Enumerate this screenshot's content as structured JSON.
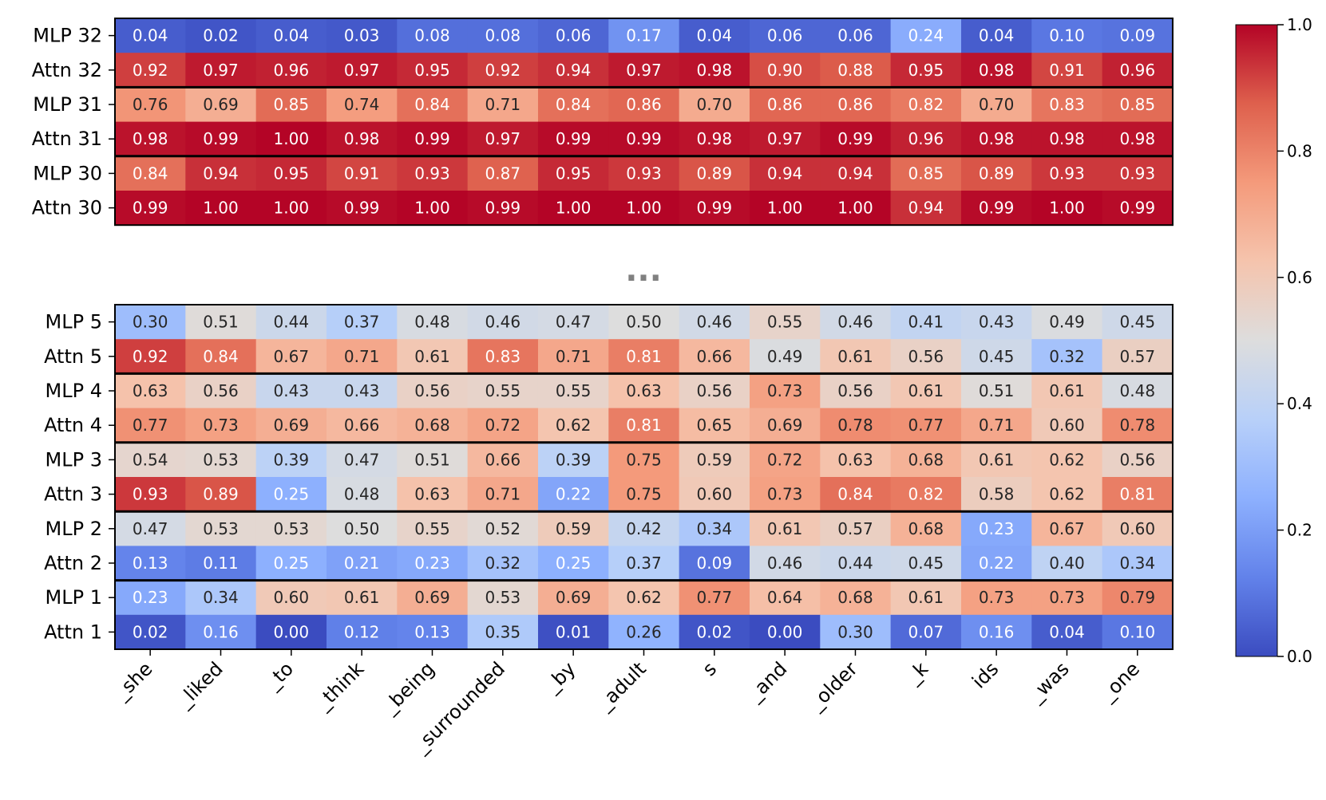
{
  "chart_data": {
    "type": "heatmap",
    "title": "",
    "tokens": [
      "_she",
      "_liked",
      "_to",
      "_think",
      "_being",
      "_surrounded",
      "_by",
      "_adult",
      "s",
      "_and",
      "_older",
      "_k",
      "ids",
      "_was",
      "_one"
    ],
    "ellipsis": "...",
    "colorbar": {
      "colormap": "coolwarm",
      "range": [
        0.0,
        1.0
      ],
      "ticks": [
        "0.0",
        "0.2",
        "0.4",
        "0.6",
        "0.8",
        "1.0"
      ]
    },
    "panels": [
      {
        "name": "top",
        "rows": [
          {
            "label": "MLP 32",
            "values": [
              "0.04",
              "0.02",
              "0.04",
              "0.03",
              "0.08",
              "0.08",
              "0.06",
              "0.17",
              "0.04",
              "0.06",
              "0.06",
              "0.24",
              "0.04",
              "0.10",
              "0.09"
            ]
          },
          {
            "label": "Attn 32",
            "values": [
              "0.92",
              "0.97",
              "0.96",
              "0.97",
              "0.95",
              "0.92",
              "0.94",
              "0.97",
              "0.98",
              "0.90",
              "0.88",
              "0.95",
              "0.98",
              "0.91",
              "0.96"
            ]
          },
          {
            "label": "MLP 31",
            "values": [
              "0.76",
              "0.69",
              "0.85",
              "0.74",
              "0.84",
              "0.71",
              "0.84",
              "0.86",
              "0.70",
              "0.86",
              "0.86",
              "0.82",
              "0.70",
              "0.83",
              "0.85"
            ]
          },
          {
            "label": "Attn 31",
            "values": [
              "0.98",
              "0.99",
              "1.00",
              "0.98",
              "0.99",
              "0.97",
              "0.99",
              "0.99",
              "0.98",
              "0.97",
              "0.99",
              "0.96",
              "0.98",
              "0.98",
              "0.98"
            ]
          },
          {
            "label": "MLP 30",
            "values": [
              "0.84",
              "0.94",
              "0.95",
              "0.91",
              "0.93",
              "0.87",
              "0.95",
              "0.93",
              "0.89",
              "0.94",
              "0.94",
              "0.85",
              "0.89",
              "0.93",
              "0.93"
            ]
          },
          {
            "label": "Attn 30",
            "values": [
              "0.99",
              "1.00",
              "1.00",
              "0.99",
              "1.00",
              "0.99",
              "1.00",
              "1.00",
              "0.99",
              "1.00",
              "1.00",
              "0.94",
              "0.99",
              "1.00",
              "0.99"
            ]
          }
        ]
      },
      {
        "name": "bottom",
        "rows": [
          {
            "label": "MLP 5",
            "values": [
              "0.30",
              "0.51",
              "0.44",
              "0.37",
              "0.48",
              "0.46",
              "0.47",
              "0.50",
              "0.46",
              "0.55",
              "0.46",
              "0.41",
              "0.43",
              "0.49",
              "0.45"
            ]
          },
          {
            "label": "Attn 5",
            "values": [
              "0.92",
              "0.84",
              "0.67",
              "0.71",
              "0.61",
              "0.83",
              "0.71",
              "0.81",
              "0.66",
              "0.49",
              "0.61",
              "0.56",
              "0.45",
              "0.32",
              "0.57"
            ]
          },
          {
            "label": "MLP 4",
            "values": [
              "0.63",
              "0.56",
              "0.43",
              "0.43",
              "0.56",
              "0.55",
              "0.55",
              "0.63",
              "0.56",
              "0.73",
              "0.56",
              "0.61",
              "0.51",
              "0.61",
              "0.48"
            ]
          },
          {
            "label": "Attn 4",
            "values": [
              "0.77",
              "0.73",
              "0.69",
              "0.66",
              "0.68",
              "0.72",
              "0.62",
              "0.81",
              "0.65",
              "0.69",
              "0.78",
              "0.77",
              "0.71",
              "0.60",
              "0.78"
            ]
          },
          {
            "label": "MLP 3",
            "values": [
              "0.54",
              "0.53",
              "0.39",
              "0.47",
              "0.51",
              "0.66",
              "0.39",
              "0.75",
              "0.59",
              "0.72",
              "0.63",
              "0.68",
              "0.61",
              "0.62",
              "0.56"
            ]
          },
          {
            "label": "Attn 3",
            "values": [
              "0.93",
              "0.89",
              "0.25",
              "0.48",
              "0.63",
              "0.71",
              "0.22",
              "0.75",
              "0.60",
              "0.73",
              "0.84",
              "0.82",
              "0.58",
              "0.62",
              "0.81"
            ]
          },
          {
            "label": "MLP 2",
            "values": [
              "0.47",
              "0.53",
              "0.53",
              "0.50",
              "0.55",
              "0.52",
              "0.59",
              "0.42",
              "0.34",
              "0.61",
              "0.57",
              "0.68",
              "0.23",
              "0.67",
              "0.60"
            ]
          },
          {
            "label": "Attn 2",
            "values": [
              "0.13",
              "0.11",
              "0.25",
              "0.21",
              "0.23",
              "0.32",
              "0.25",
              "0.37",
              "0.09",
              "0.46",
              "0.44",
              "0.45",
              "0.22",
              "0.40",
              "0.34"
            ]
          },
          {
            "label": "MLP 1",
            "values": [
              "0.23",
              "0.34",
              "0.60",
              "0.61",
              "0.69",
              "0.53",
              "0.69",
              "0.62",
              "0.77",
              "0.64",
              "0.68",
              "0.61",
              "0.73",
              "0.73",
              "0.79"
            ]
          },
          {
            "label": "Attn 1",
            "values": [
              "0.02",
              "0.16",
              "0.00",
              "0.12",
              "0.13",
              "0.35",
              "0.01",
              "0.26",
              "0.02",
              "0.00",
              "0.30",
              "0.07",
              "0.16",
              "0.04",
              "0.10"
            ]
          }
        ]
      }
    ]
  }
}
